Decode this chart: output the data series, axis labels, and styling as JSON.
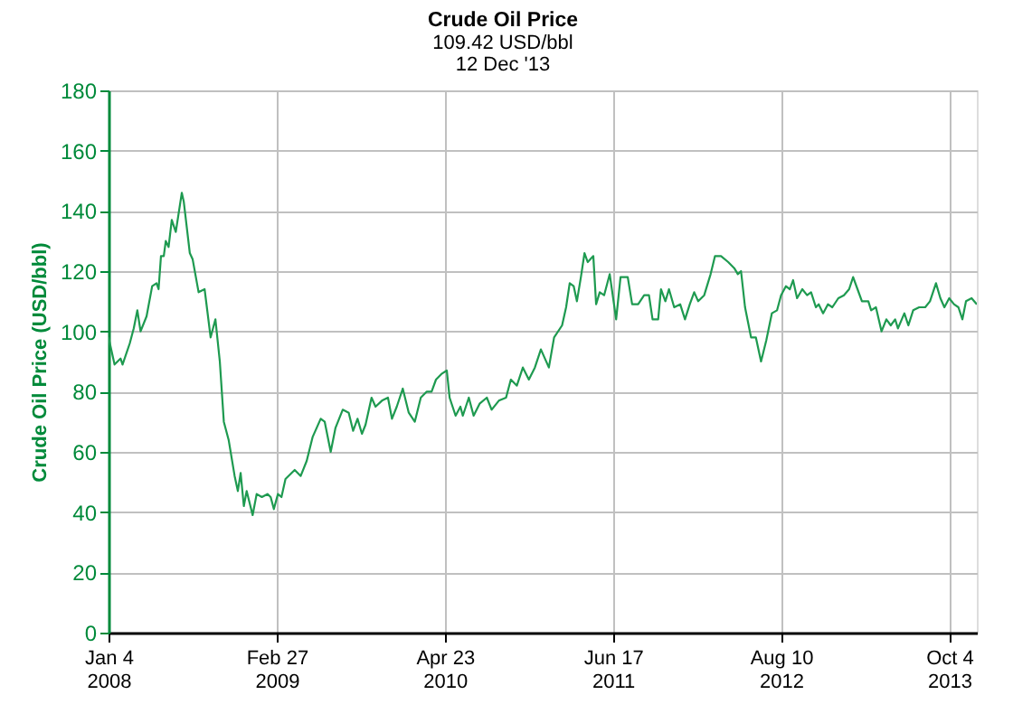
{
  "chart_data": {
    "type": "line",
    "title": "Crude Oil Price",
    "subtitle": "109.42 USD/bbl\n12 Dec '13",
    "ylabel": "Crude Oil Price (USD/bbl)",
    "x": [
      "2008-01-04",
      "2008-01-19",
      "2008-02-03",
      "2008-02-08",
      "2008-02-26",
      "2008-03-07",
      "2008-03-16",
      "2008-03-24",
      "2008-04-08",
      "2008-04-22",
      "2008-05-03",
      "2008-05-08",
      "2008-05-14",
      "2008-05-21",
      "2008-05-26",
      "2008-06-02",
      "2008-06-10",
      "2008-06-20",
      "2008-07-05",
      "2008-07-10",
      "2008-07-25",
      "2008-08-01",
      "2008-08-16",
      "2008-08-31",
      "2008-09-15",
      "2008-09-27",
      "2008-10-08",
      "2008-10-18",
      "2008-10-30",
      "2008-11-14",
      "2008-11-22",
      "2008-11-29",
      "2008-12-07",
      "2008-12-14",
      "2008-12-29",
      "2009-01-08",
      "2009-01-21",
      "2009-02-04",
      "2009-02-12",
      "2009-02-20",
      "2009-03-02",
      "2009-03-11",
      "2009-03-21",
      "2009-04-13",
      "2009-04-28",
      "2009-05-13",
      "2009-05-28",
      "2009-06-17",
      "2009-06-27",
      "2009-07-12",
      "2009-07-24",
      "2009-08-11",
      "2009-08-26",
      "2009-09-06",
      "2009-09-17",
      "2009-09-28",
      "2009-10-07",
      "2009-10-22",
      "2009-11-01",
      "2009-11-17",
      "2009-12-02",
      "2009-12-12",
      "2009-12-24",
      "2010-01-08",
      "2010-01-23",
      "2010-02-07",
      "2010-02-22",
      "2010-03-09",
      "2010-03-21",
      "2010-04-01",
      "2010-04-16",
      "2010-04-28",
      "2010-05-05",
      "2010-05-20",
      "2010-06-01",
      "2010-06-07",
      "2010-06-22",
      "2010-07-04",
      "2010-07-19",
      "2010-08-06",
      "2010-08-18",
      "2010-09-05",
      "2010-09-23",
      "2010-10-05",
      "2010-10-20",
      "2010-11-04",
      "2010-11-19",
      "2010-12-04",
      "2010-12-19",
      "2010-12-29",
      "2011-01-08",
      "2011-01-21",
      "2011-02-10",
      "2011-02-20",
      "2011-03-01",
      "2011-03-11",
      "2011-03-19",
      "2011-03-29",
      "2011-04-07",
      "2011-04-15",
      "2011-04-29",
      "2011-05-06",
      "2011-05-15",
      "2011-05-26",
      "2011-06-09",
      "2011-06-25",
      "2011-07-06",
      "2011-07-24",
      "2011-08-04",
      "2011-08-19",
      "2011-09-03",
      "2011-09-15",
      "2011-09-24",
      "2011-10-08",
      "2011-10-15",
      "2011-10-26",
      "2011-11-04",
      "2011-11-17",
      "2011-12-02",
      "2011-12-14",
      "2011-12-26",
      "2012-01-06",
      "2012-01-16",
      "2012-01-31",
      "2012-02-16",
      "2012-02-27",
      "2012-03-13",
      "2012-03-31",
      "2012-04-15",
      "2012-04-24",
      "2012-05-02",
      "2012-05-12",
      "2012-05-27",
      "2012-06-08",
      "2012-06-21",
      "2012-07-04",
      "2012-07-18",
      "2012-07-31",
      "2012-08-10",
      "2012-08-22",
      "2012-09-01",
      "2012-09-09",
      "2012-09-19",
      "2012-10-02",
      "2012-10-14",
      "2012-10-24",
      "2012-11-05",
      "2012-11-12",
      "2012-11-23",
      "2012-12-05",
      "2012-12-16",
      "2012-12-31",
      "2013-01-14",
      "2013-01-27",
      "2013-02-06",
      "2013-02-17",
      "2013-02-28",
      "2013-03-16",
      "2013-03-23",
      "2013-04-04",
      "2013-04-18",
      "2013-04-30",
      "2013-05-11",
      "2013-05-22",
      "2013-05-29",
      "2013-06-14",
      "2013-06-24",
      "2013-07-06",
      "2013-07-21",
      "2013-08-05",
      "2013-08-17",
      "2013-09-01",
      "2013-09-12",
      "2013-09-22",
      "2013-10-04",
      "2013-10-16",
      "2013-10-27",
      "2013-11-06",
      "2013-11-15",
      "2013-11-29",
      "2013-12-12"
    ],
    "series": [
      {
        "color": "#1e9a50",
        "values": [
          98,
          89,
          91,
          89,
          96,
          101,
          107,
          100,
          105,
          115,
          116,
          114,
          125,
          125,
          130,
          128,
          137,
          133,
          146,
          143,
          126,
          124,
          113,
          114,
          98,
          104,
          90,
          70,
          64,
          52,
          47,
          53,
          42,
          47,
          39,
          46,
          45,
          46,
          45,
          41,
          46,
          45,
          51,
          54,
          52,
          57,
          65,
          71,
          70,
          60,
          68,
          74,
          73,
          67,
          71,
          66,
          69,
          78,
          75,
          77,
          78,
          71,
          75,
          81,
          73,
          70,
          78,
          80,
          80,
          84,
          86,
          87,
          78,
          72,
          75,
          72,
          78,
          72,
          76,
          78,
          74,
          77,
          78,
          84,
          82,
          88,
          84,
          88,
          94,
          91,
          88,
          98,
          102,
          108,
          116,
          115,
          110,
          118,
          126,
          123,
          125,
          109,
          113,
          112,
          119,
          104,
          118,
          118,
          109,
          109,
          112,
          112,
          104,
          104,
          114,
          110,
          114,
          108,
          109,
          104,
          109,
          113,
          110,
          112,
          119,
          125,
          125,
          123,
          121,
          119,
          120,
          108,
          98,
          98,
          90,
          97,
          106,
          107,
          112,
          115,
          114,
          117,
          111,
          114,
          112,
          113,
          108,
          109,
          106,
          109,
          108,
          111,
          112,
          114,
          118,
          114,
          110,
          110,
          107,
          108,
          100,
          104,
          102,
          104,
          101,
          106,
          102,
          107,
          108,
          108,
          110,
          116,
          111,
          108,
          111,
          109,
          108,
          104,
          110,
          111,
          109
        ]
      }
    ],
    "xlim": [
      "2008-01-04",
      "2013-12-12"
    ],
    "xticks": [
      {
        "value": "2008-01-04",
        "label": "Jan 4\n2008"
      },
      {
        "value": "2009-02-27",
        "label": "Feb 27\n2009"
      },
      {
        "value": "2010-04-23",
        "label": "Apr 23\n2010"
      },
      {
        "value": "2011-06-17",
        "label": "Jun 17\n2011"
      },
      {
        "value": "2012-08-10",
        "label": "Aug 10\n2012"
      },
      {
        "value": "2013-10-04",
        "label": "Oct 4\n2013"
      }
    ],
    "ylim": [
      0,
      180
    ],
    "yticks": [
      0,
      20,
      40,
      60,
      80,
      100,
      120,
      140,
      160,
      180
    ],
    "grid": true
  }
}
